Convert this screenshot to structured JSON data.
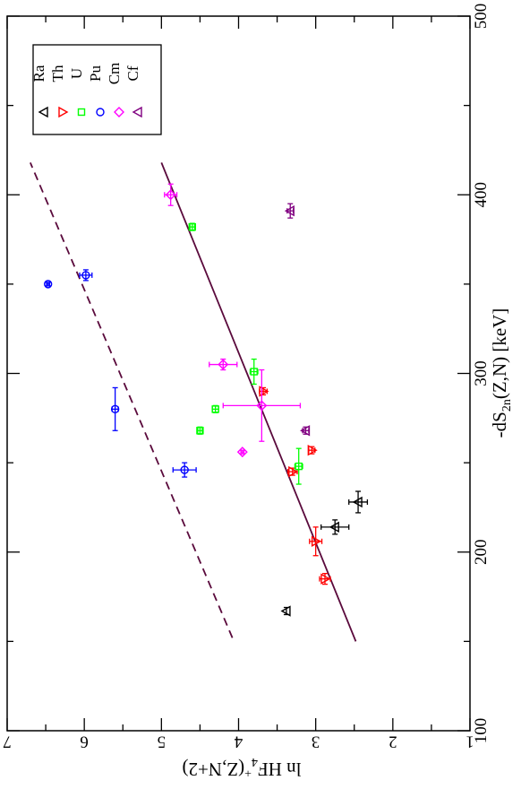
{
  "chart_data": {
    "type": "scatter",
    "orientation": "rotated-90-counterclockwise",
    "xlabel_parts": [
      "-dS",
      "2n",
      "(Z,N)  [keV]"
    ],
    "ylabel_parts": [
      "ln HF",
      "4",
      "+",
      "(Z,N+2)"
    ],
    "xlim": [
      100,
      500
    ],
    "ylim": [
      1,
      7
    ],
    "x_ticks": [
      "100",
      "200",
      "300",
      "400",
      "500"
    ],
    "y_ticks": [
      "1",
      "2",
      "3",
      "4",
      "5",
      "6",
      "7"
    ],
    "grid": false,
    "legend_position": "top-right",
    "series": [
      {
        "name": "Ra",
        "marker": "triangle-up",
        "color": "#000000",
        "points": [
          {
            "x": 167,
            "y": 3.38,
            "ex": 2,
            "ey": 0
          },
          {
            "x": 214,
            "y": 2.75,
            "ex": 4,
            "ey": 0.18
          },
          {
            "x": 228,
            "y": 2.45,
            "ex": 6,
            "ey": 0.12
          }
        ]
      },
      {
        "name": "Th",
        "marker": "triangle-down",
        "color": "#ff0000",
        "points": [
          {
            "x": 185,
            "y": 2.88,
            "ex": 3,
            "ey": 0.07
          },
          {
            "x": 206,
            "y": 3.0,
            "ex": 8,
            "ey": 0.08
          },
          {
            "x": 245,
            "y": 3.3,
            "ex": 2,
            "ey": 0.06
          },
          {
            "x": 257,
            "y": 3.05,
            "ex": 2,
            "ey": 0.04
          },
          {
            "x": 290,
            "y": 3.68,
            "ex": 2,
            "ey": 0.05
          }
        ]
      },
      {
        "name": "U",
        "marker": "square",
        "color": "#00ff00",
        "points": [
          {
            "x": 248,
            "y": 3.22,
            "ex": 10,
            "ey": 0.05
          },
          {
            "x": 268,
            "y": 4.5,
            "ex": 2,
            "ey": 0.03
          },
          {
            "x": 280,
            "y": 4.3,
            "ex": 2,
            "ey": 0.04
          },
          {
            "x": 301,
            "y": 3.8,
            "ex": 7,
            "ey": 0.05
          },
          {
            "x": 382,
            "y": 4.6,
            "ex": 2,
            "ey": 0.03
          }
        ]
      },
      {
        "name": "Pu",
        "marker": "circle",
        "color": "#0000ff",
        "points": [
          {
            "x": 246,
            "y": 4.7,
            "ex": 4,
            "ey": 0.15
          },
          {
            "x": 280,
            "y": 5.6,
            "ex": 12,
            "ey": 0.04
          },
          {
            "x": 350,
            "y": 6.47,
            "ex": 1,
            "ey": 0.02
          },
          {
            "x": 355,
            "y": 5.98,
            "ex": 3,
            "ey": 0.08
          }
        ]
      },
      {
        "name": "Cm",
        "marker": "diamond",
        "color": "#ff00ff",
        "points": [
          {
            "x": 256,
            "y": 3.95,
            "ex": 1,
            "ey": 0.02
          },
          {
            "x": 282,
            "y": 3.7,
            "ex": 20,
            "ey": 0.5
          },
          {
            "x": 305,
            "y": 4.2,
            "ex": 3,
            "ey": 0.18
          },
          {
            "x": 400,
            "y": 4.88,
            "ex": 6,
            "ey": 0.08
          }
        ]
      },
      {
        "name": "Cf",
        "marker": "triangle-up",
        "color": "#800080",
        "points": [
          {
            "x": 268,
            "y": 3.13,
            "ex": 2,
            "ey": 0.04
          },
          {
            "x": 391,
            "y": 3.33,
            "ex": 4,
            "ey": 0.04
          }
        ]
      }
    ],
    "lines": [
      {
        "style": "solid",
        "color": "#5a0a3c",
        "x": [
          150,
          418
        ],
        "y": [
          2.48,
          5.0
        ]
      },
      {
        "style": "dashed",
        "color": "#5a0a3c",
        "x": [
          152,
          418
        ],
        "y": [
          4.08,
          6.7
        ]
      }
    ]
  }
}
